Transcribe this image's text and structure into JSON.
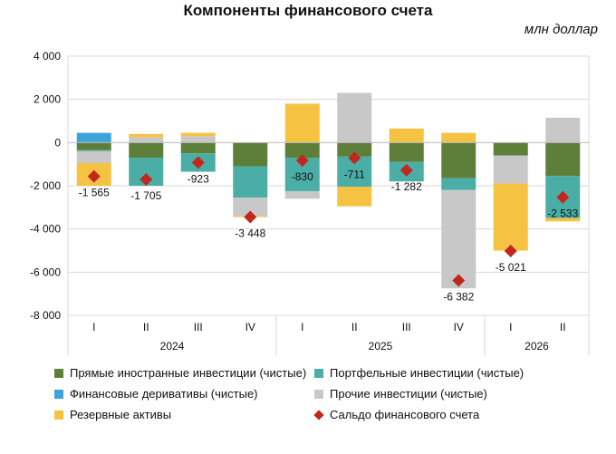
{
  "title": "Компоненты финансового счета",
  "unit": "млн доллар",
  "colors": {
    "fdi": "#5e7f3a",
    "portfolio": "#4aaea6",
    "derivatives": "#3ca4d8",
    "other": "#c8c8c8",
    "reserves": "#f5c242",
    "balance": "#c0281e",
    "grid": "#d9d9d9"
  },
  "chart_data": {
    "type": "bar",
    "stacked": true,
    "ylim": [
      -8000,
      4000
    ],
    "yticks": [
      4000,
      2000,
      0,
      -2000,
      -4000,
      -6000,
      -8000
    ],
    "ytick_labels": [
      "4 000",
      "2 000",
      "0",
      "-2 000",
      "-4 000",
      "-6 000",
      "-8 000"
    ],
    "categories": [
      "I",
      "II",
      "III",
      "IV",
      "I",
      "II",
      "III",
      "IV",
      "I",
      "II"
    ],
    "groups": [
      {
        "label": "2024",
        "start": 0,
        "end": 3
      },
      {
        "label": "2025",
        "start": 4,
        "end": 7
      },
      {
        "label": "2026",
        "start": 8,
        "end": 9
      }
    ],
    "series": [
      {
        "name": "Прямые иностранные инвестиции (чистые)",
        "key": "fdi",
        "values": [
          -350,
          -700,
          -500,
          -1100,
          -700,
          -650,
          -900,
          -1650,
          -600,
          -1550
        ]
      },
      {
        "name": "Портфельные инвестиции (чистые)",
        "key": "portfolio",
        "values": [
          -50,
          -1300,
          -850,
          -1450,
          -1550,
          -1400,
          -900,
          -550,
          0,
          -1950
        ]
      },
      {
        "name": "Финансовые деривативы (чистые)",
        "key": "derivatives",
        "values": [
          450,
          0,
          0,
          0,
          0,
          0,
          0,
          0,
          0,
          0
        ]
      },
      {
        "name": "Прочие инвестиции (чистые)",
        "key": "other",
        "values": [
          -550,
          250,
          300,
          -850,
          -350,
          2300,
          0,
          -4550,
          -1300,
          1150
        ]
      },
      {
        "name": "Резервные активы",
        "key": "reserves",
        "values": [
          -1050,
          150,
          150,
          -50,
          1800,
          -900,
          650,
          450,
          -3100,
          -150
        ]
      }
    ],
    "balance": {
      "name": "Сальдо финансового счета",
      "values": [
        -1565,
        -1705,
        -923,
        -3448,
        -830,
        -711,
        -1282,
        -6382,
        -5021,
        -2533
      ],
      "labels": [
        "-1 565",
        "-1 705",
        "-923",
        "-3 448",
        "-830",
        "-711",
        "-1 282",
        "-6 382",
        "-5 021",
        "-2 533"
      ]
    },
    "legend_position": "bottom"
  }
}
